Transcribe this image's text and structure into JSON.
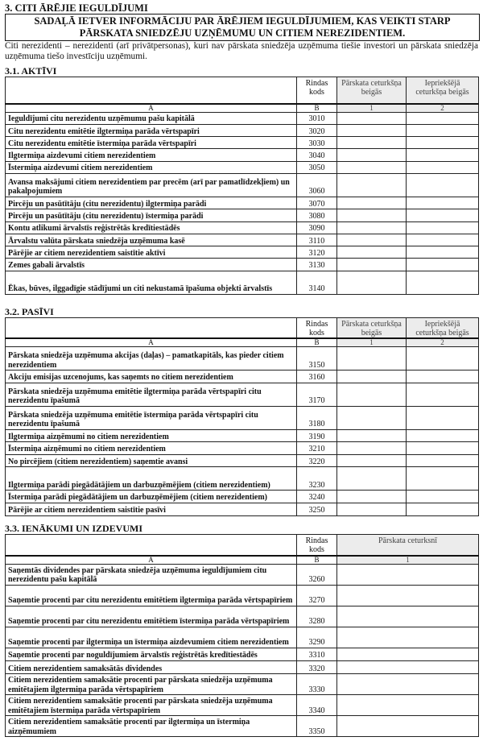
{
  "title": "3. CITI ĀRĒJIE IEGULDĪJUMI",
  "banner": "SADAĻĀ IETVER INFORMĀCIJU PAR ĀRĒJIEM IEGULDĪJUMIEM, KAS VEIKTI STARP PĀRSKATA SNIEDZĒJU UZŅĒMUMU UN CITIEM NEREZIDENTIEM.",
  "intro": "Citi nerezidenti – nerezidenti (arī privātpersonas), kuri nav pārskata sniedzēja uzņēmuma tiešie investori un pārskata sniedzēja uzņēmuma tiešo investīciju uzņēmumi.",
  "common": {
    "col_code": "Rindas kods",
    "col_a": "A",
    "col_b": "B",
    "col_1": "1",
    "col_2": "2",
    "col_end_quarter": "Pārskata ceturkšņa beigās",
    "col_prev_quarter": "Iepriekšējā ceturkšņa beigās",
    "col_quarter": "Pārskata ceturksnī"
  },
  "sections": [
    {
      "title": "3.1. AKTĪVI",
      "columns": 2,
      "rows": [
        {
          "label": "Ieguldījumi citu nerezidentu uzņēmumu pašu kapitālā",
          "code": "3010",
          "lines": 1
        },
        {
          "label": "Citu nerezidentu emitētie ilgtermiņa parāda vērtspapīri",
          "code": "3020",
          "lines": 1
        },
        {
          "label": "Citu nerezidentu emitētie īstermiņa parāda vērtspapīri",
          "code": "3030",
          "lines": 1
        },
        {
          "label": "Ilgtermiņa aizdevumi citiem nerezidentiem",
          "code": "3040",
          "lines": 1
        },
        {
          "label": "Īstermiņa aizdevumi citiem nerezidentiem",
          "code": "3050",
          "lines": 1
        },
        {
          "label": "Avansa maksājumi citiem nerezidentiem par precēm (arī par pamatlīdzekļiem) un pakalpojumiem",
          "code": "3060",
          "lines": 2
        },
        {
          "label": "Pircēju un pasūtītāju (citu nerezidentu) ilgtermiņa parādi",
          "code": "3070",
          "lines": 1
        },
        {
          "label": "Pircēju un pasūtītāju (citu nerezidentu) īstermiņa parādi",
          "code": "3080",
          "lines": 1
        },
        {
          "label": "Kontu atlikumi ārvalstīs reģistrētās kredītiestādēs",
          "code": "3090",
          "lines": 1
        },
        {
          "label": "Ārvalstu valūta pārskata sniedzēja uzņēmuma kasē",
          "code": "3110",
          "lines": 1
        },
        {
          "label": "Pārējie ar citiem nerezidentiem saistītie aktīvi",
          "code": "3120",
          "lines": 1
        },
        {
          "label": "Zemes gabali ārvalstīs",
          "code": "3130",
          "lines": 1
        },
        {
          "label": "Ēkas, būves, ilggadīgie stādījumi un citi nekustamā īpašuma objekti ārvalstīs",
          "code": "3140",
          "lines": 2
        }
      ]
    },
    {
      "title": "3.2. PASĪVI",
      "columns": 2,
      "rows": [
        {
          "label": "Pārskata sniedzēja uzņēmuma akcijas (daļas) – pamatkapitāls, kas pieder citiem nerezidentiem",
          "code": "3150",
          "lines": 2
        },
        {
          "label": "Akciju emisijas uzcenojums, kas saņemts no citiem nerezidentiem",
          "code": "3160",
          "lines": 1
        },
        {
          "label": "Pārskata sniedzēja uzņēmuma emitētie ilgtermiņa parāda vērtspapīri citu nerezidentu īpašumā",
          "code": "3170",
          "lines": 2
        },
        {
          "label": "Pārskata sniedzēja uzņēmuma emitētie īstermiņa parāda vērtspapīri citu nerezidentu īpašumā",
          "code": "3180",
          "lines": 2
        },
        {
          "label": "Ilgtermiņa aizņēmumi no citiem nerezidentiem",
          "code": "3190",
          "lines": 1
        },
        {
          "label": "Īstermiņa aizņēmumi no citiem nerezidentiem",
          "code": "3210",
          "lines": 1
        },
        {
          "label": "No pircējiem (citiem nerezidentiem) saņemtie avansi",
          "code": "3220",
          "lines": 1
        },
        {
          "label": "Ilgtermiņa parādi piegādātājiem un darbuzņēmējiem (citiem nerezidentiem)",
          "code": "3230",
          "lines": 2
        },
        {
          "label": "Īstermiņa parādi piegādātājiem un darbuzņēmējiem (citiem nerezidentiem)",
          "code": "3240",
          "lines": 1
        },
        {
          "label": "Pārējie ar citiem nerezidentiem saistītie pasīvi",
          "code": "3250",
          "lines": 1
        }
      ]
    },
    {
      "title": "3.3. IENĀKUMI UN IZDEVUMI",
      "columns": 1,
      "rows": [
        {
          "label": "Saņemtās dividendes par pārskata sniedzēja uzņēmuma ieguldījumiem citu nerezidentu pašu kapitālā",
          "code": "3260",
          "lines": 2
        },
        {
          "label": "Saņemtie procenti par citu nerezidentu emitētiem ilgtermiņa parāda vērtspapīriem",
          "code": "3270",
          "lines": 2
        },
        {
          "label": "Saņemtie procenti par citu nerezidentu emitētiem īstermiņa parāda vērtspapīriem",
          "code": "3280",
          "lines": 2
        },
        {
          "label": "Saņemtie procenti par ilgtermiņa un īstermiņa aizdevumiem citiem nerezidentiem",
          "code": "3290",
          "lines": 2
        },
        {
          "label": "Saņemtie procenti par noguldījumiem ārvalstīs reģistrētās kredītiestādēs",
          "code": "3310",
          "lines": 1
        },
        {
          "label": "Citiem nerezidentiem samaksātās dividendes",
          "code": "3320",
          "lines": 1
        },
        {
          "label": "Citiem nerezidentiem samaksātie procenti par pārskata sniedzēja uzņēmuma emitētajiem ilgtermiņa parāda vērtspapīriem",
          "code": "3330",
          "lines": 2
        },
        {
          "label": "Citiem nerezidentiem samaksātie procenti par pārskata sniedzēja uzņēmuma emitētajiem īstermiņa parāda vērtspapīriem",
          "code": "3340",
          "lines": 2
        },
        {
          "label": "Citiem nerezidentiem samaksātie procenti par ilgtermiņa un īstermiņa aizņēmumiem",
          "code": "3350",
          "lines": 2
        }
      ]
    }
  ]
}
